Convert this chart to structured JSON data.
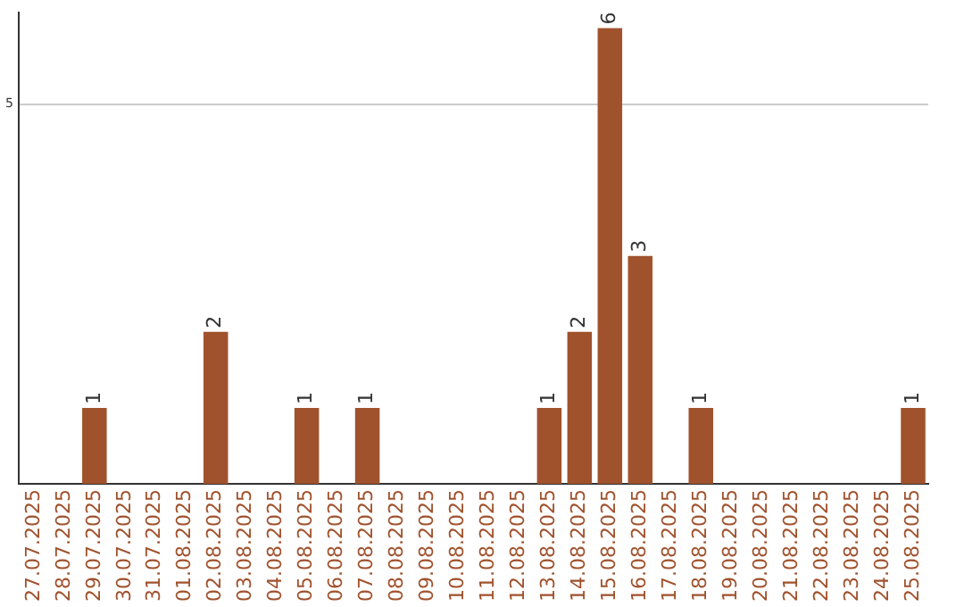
{
  "chart_data": {
    "type": "bar",
    "categories": [
      "27.07.2025",
      "28.07.2025",
      "29.07.2025",
      "30.07.2025",
      "31.07.2025",
      "01.08.2025",
      "02.08.2025",
      "03.08.2025",
      "04.08.2025",
      "05.08.2025",
      "06.08.2025",
      "07.08.2025",
      "08.08.2025",
      "09.08.2025",
      "10.08.2025",
      "11.08.2025",
      "12.08.2025",
      "13.08.2025",
      "14.08.2025",
      "15.08.2025",
      "16.08.2025",
      "17.08.2025",
      "18.08.2025",
      "19.08.2025",
      "20.08.2025",
      "21.08.2025",
      "22.08.2025",
      "23.08.2025",
      "24.08.2025",
      "25.08.2025"
    ],
    "values": [
      0,
      0,
      1,
      0,
      0,
      0,
      2,
      0,
      0,
      1,
      0,
      1,
      0,
      0,
      0,
      0,
      0,
      1,
      2,
      6,
      3,
      0,
      1,
      0,
      0,
      0,
      0,
      0,
      0,
      1
    ],
    "value_labels": [
      null,
      null,
      "1",
      null,
      null,
      null,
      "2",
      null,
      null,
      "1",
      null,
      "1",
      null,
      null,
      null,
      null,
      null,
      "1",
      "2",
      "6",
      "3",
      null,
      "1",
      null,
      null,
      null,
      null,
      null,
      null,
      "1"
    ],
    "color": "#a0522d",
    "ylim": [
      0,
      6.2
    ],
    "yticks": [
      5
    ],
    "grid": "y"
  }
}
